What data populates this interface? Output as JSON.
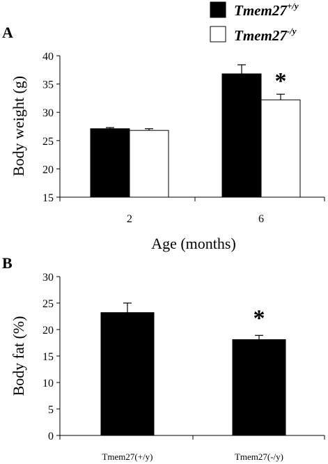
{
  "colors": {
    "series_1": "#000000",
    "series_2": "#ffffff",
    "stroke": "#000000"
  },
  "legend": [
    {
      "name": "Tmem27",
      "sup": "+/y"
    },
    {
      "name": "Tmem27",
      "sup": "-/y"
    }
  ],
  "chart_data": [
    {
      "panel": "A",
      "type": "bar",
      "xlabel": "Age (months)",
      "ylabel": "Body weight (g)",
      "ylim": [
        15,
        40
      ],
      "yticks": [
        15,
        20,
        25,
        30,
        35,
        40
      ],
      "categories": [
        "2",
        "6"
      ],
      "series": [
        {
          "values": [
            27.1,
            36.8
          ],
          "errors": [
            0.2,
            1.6
          ]
        },
        {
          "values": [
            26.8,
            32.2
          ],
          "errors": [
            0.3,
            1.0
          ]
        }
      ],
      "annotations": [
        {
          "text": "*",
          "category": "6",
          "series": 1
        }
      ],
      "grid": false,
      "legend_position": "top-right"
    },
    {
      "panel": "B",
      "type": "bar",
      "xlabel": "",
      "ylabel": "Body fat (%)",
      "ylim": [
        0,
        30
      ],
      "yticks": [
        0,
        5,
        10,
        15,
        20,
        25,
        30
      ],
      "categories": [
        "Tmem27(+/y)",
        "Tmem27(-/y)"
      ],
      "values": [
        23.2,
        18.1
      ],
      "errors": [
        1.8,
        0.8
      ],
      "annotations": [
        {
          "text": "*",
          "category": "Tmem27(-/y)"
        }
      ],
      "grid": false
    }
  ]
}
